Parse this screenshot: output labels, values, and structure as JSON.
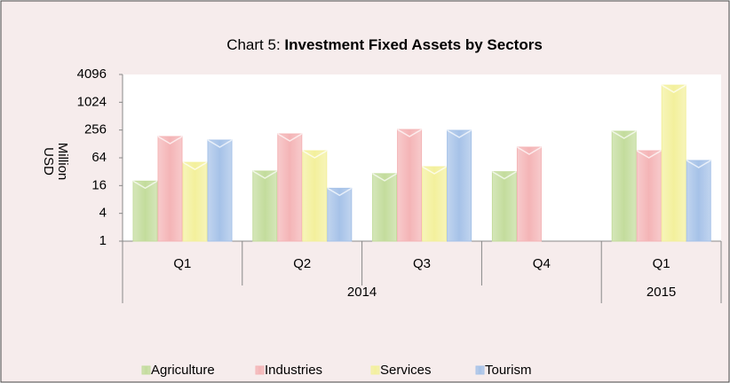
{
  "chart_data": {
    "type": "bar",
    "title_prefix": "Chart 5: ",
    "title": "Investment Fixed Assets by Sectors",
    "y_label": [
      "USD",
      "Million"
    ],
    "categories": [
      "Q1",
      "Q2",
      "Q3",
      "Q4",
      "Q1"
    ],
    "groups": [
      {
        "label": "2014",
        "span": 4
      },
      {
        "label": "2015",
        "span": 1
      }
    ],
    "series": [
      {
        "name": "Agriculture",
        "color": "#c3dc9c",
        "values": [
          20,
          33,
          29,
          32,
          241
        ]
      },
      {
        "name": "Industries",
        "color": "#f4b4b6",
        "values": [
          185,
          211,
          263,
          109,
          91
        ]
      },
      {
        "name": "Services",
        "color": "#f3f09c",
        "values": [
          51,
          91,
          41,
          null,
          2400
        ]
      },
      {
        "name": "Tourism",
        "color": "#a6c2e8",
        "values": [
          155,
          14,
          252,
          null,
          56
        ]
      }
    ],
    "ylim": [
      1,
      4096
    ],
    "yticks": [
      1,
      4,
      16,
      64,
      256,
      1024,
      4096
    ],
    "log_scale": true,
    "legend": "bottom"
  }
}
